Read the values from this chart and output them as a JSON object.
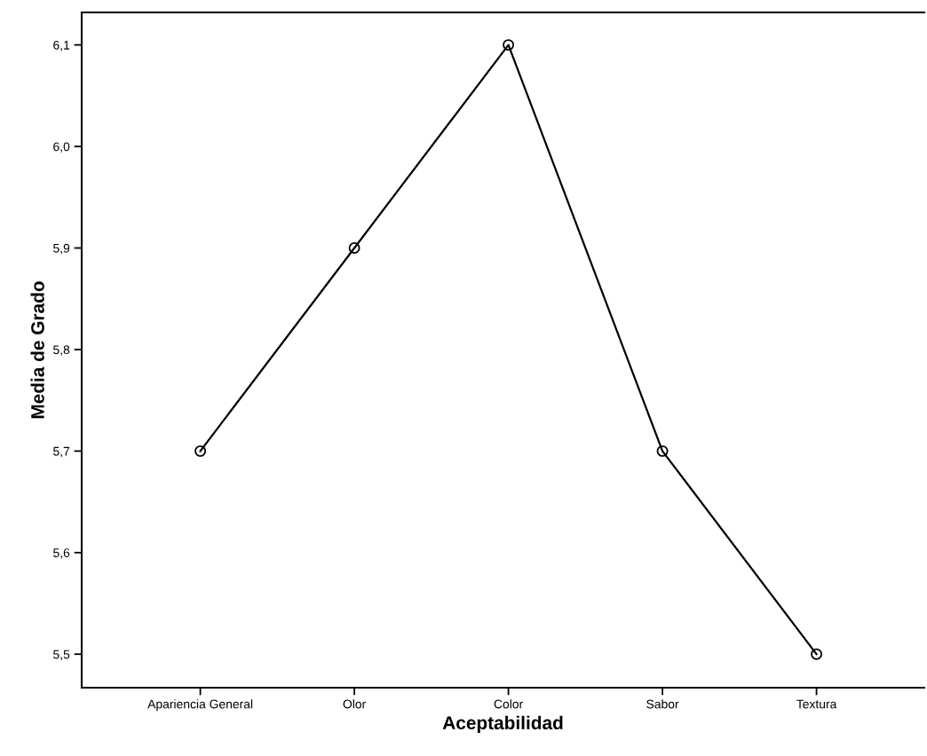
{
  "chart_data": {
    "type": "line",
    "xlabel": "Aceptabilidad",
    "ylabel": "Media de Grado",
    "categories": [
      "Apariencia General",
      "Olor",
      "Color",
      "Sabor",
      "Textura"
    ],
    "series": [
      {
        "color": "#000000",
        "values": [
          5.7,
          5.9,
          6.1,
          5.7,
          5.5
        ]
      }
    ],
    "ylim": [
      5.467,
      6.132
    ],
    "yticks": [
      {
        "value": 5.5,
        "label": "5,5"
      },
      {
        "value": 5.6,
        "label": "5,6"
      },
      {
        "value": 5.7,
        "label": "5,7"
      },
      {
        "value": 5.8,
        "label": "5,8"
      },
      {
        "value": 5.9,
        "label": "5,9"
      },
      {
        "value": 6.0,
        "label": "6,0"
      },
      {
        "value": 6.1,
        "label": "6,1"
      }
    ],
    "marker": "circle",
    "line_style": "solid",
    "grid": false,
    "legend": false
  }
}
